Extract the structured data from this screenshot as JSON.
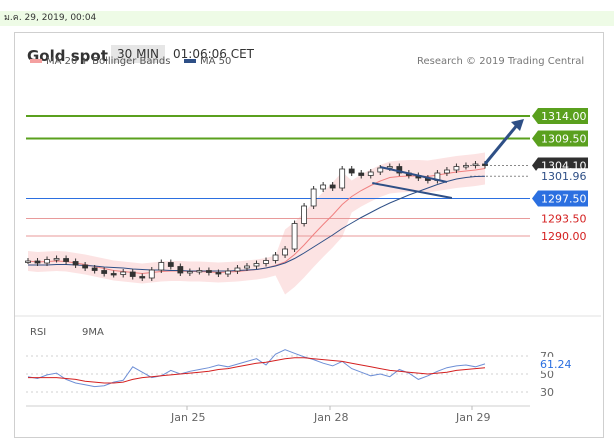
{
  "date_line": "ม.ค. 29, 2019, 00:04",
  "header": {
    "title": "Gold spot",
    "timeframe": "30 MIN",
    "time": "01:06:06 CET"
  },
  "legend": {
    "bb": {
      "label": "MA 20 + Bollinger Bands",
      "color": "#f08080"
    },
    "ma50": {
      "label": "MA 50",
      "color": "#2e4f86"
    }
  },
  "research": "Research © 2019 Trading Central",
  "rsi_legend": {
    "rsi": {
      "label": "RSI",
      "color": "#6e8fd6"
    },
    "ma9": {
      "label": "9MA",
      "color": "#d42020"
    }
  },
  "chart_data": [
    {
      "type": "line",
      "title": "Gold spot",
      "x_tick_labels": [
        "Jan 25",
        "Jan 28",
        "Jan 29"
      ],
      "horizontal_levels": [
        {
          "value": 1314.0,
          "label": "1314.00",
          "color": "#5aa01e",
          "kind": "resistance"
        },
        {
          "value": 1309.5,
          "label": "1309.50",
          "color": "#5aa01e",
          "kind": "resistance"
        },
        {
          "value": 1304.1,
          "label": "1304.10",
          "color": "#333333",
          "kind": "last"
        },
        {
          "value": 1301.96,
          "label": "1301.96",
          "color": "#2e4f86",
          "kind": "ma50"
        },
        {
          "value": 1297.5,
          "label": "1297.50",
          "color": "#2b6fe0",
          "kind": "pivot"
        },
        {
          "value": 1293.5,
          "label": "1293.50",
          "color": "#d42020",
          "kind": "support"
        },
        {
          "value": 1290.0,
          "label": "1290.00",
          "color": "#d42020",
          "kind": "support"
        }
      ],
      "series": [
        {
          "name": "Gold spot",
          "values": [
            1285.0,
            1284.6,
            1285.3,
            1285.5,
            1284.9,
            1284.2,
            1283.6,
            1283.1,
            1282.5,
            1282.3,
            1282.8,
            1281.9,
            1281.6,
            1283.2,
            1284.7,
            1283.9,
            1282.6,
            1282.9,
            1283.1,
            1282.7,
            1282.4,
            1283.0,
            1283.6,
            1284.0,
            1284.5,
            1285.1,
            1286.2,
            1287.4,
            1292.5,
            1296.0,
            1299.4,
            1300.2,
            1299.6,
            1303.4,
            1302.6,
            1302.1,
            1302.8,
            1303.6,
            1303.9,
            1302.6,
            1302.1,
            1301.6,
            1301.1,
            1302.6,
            1303.2,
            1303.9,
            1304.1,
            1304.4,
            1304.1
          ]
        },
        {
          "name": "MA 20",
          "values": [
            1285.0,
            1284.8,
            1284.9,
            1285.0,
            1284.9,
            1284.6,
            1284.3,
            1283.9,
            1283.5,
            1283.1,
            1282.9,
            1282.7,
            1282.5,
            1282.7,
            1282.9,
            1283.0,
            1283.0,
            1282.9,
            1282.9,
            1282.8,
            1282.7,
            1282.8,
            1282.9,
            1283.1,
            1283.3,
            1283.6,
            1284.1,
            1284.8,
            1286.3,
            1288.2,
            1290.3,
            1292.3,
            1294.2,
            1296.3,
            1297.9,
            1299.1,
            1300.1,
            1301.0,
            1301.7,
            1301.9,
            1302.0,
            1302.0,
            1301.9,
            1302.2,
            1302.5,
            1302.8,
            1303.0,
            1303.2,
            1303.5
          ]
        },
        {
          "name": "MA 50",
          "values": [
            1284.2,
            1284.2,
            1284.2,
            1284.3,
            1284.3,
            1284.2,
            1284.1,
            1284.0,
            1283.8,
            1283.7,
            1283.6,
            1283.4,
            1283.3,
            1283.2,
            1283.2,
            1283.1,
            1283.1,
            1283.0,
            1283.0,
            1283.0,
            1283.0,
            1283.0,
            1283.1,
            1283.2,
            1283.3,
            1283.6,
            1284.0,
            1284.6,
            1285.5,
            1286.6,
            1287.8,
            1289.0,
            1290.2,
            1291.5,
            1292.6,
            1293.7,
            1294.7,
            1295.7,
            1296.6,
            1297.4,
            1298.2,
            1298.9,
            1299.6,
            1300.3,
            1300.9,
            1301.4,
            1301.7,
            1301.9,
            1301.96
          ]
        }
      ],
      "channel": {
        "upper": [
          1303.8,
          1300.8
        ],
        "lower": [
          1300.6,
          1297.6
        ]
      }
    },
    {
      "type": "line",
      "title": "RSI",
      "y_tick_labels": [
        "70",
        "50",
        "30"
      ],
      "last_value": "61.24",
      "series": [
        {
          "name": "RSI",
          "values": [
            47,
            45,
            49,
            51,
            44,
            40,
            38,
            36,
            37,
            41,
            43,
            58,
            52,
            46,
            48,
            54,
            50,
            53,
            55,
            57,
            60,
            58,
            61,
            64,
            67,
            60,
            72,
            77,
            73,
            69,
            66,
            62,
            59,
            64,
            56,
            52,
            48,
            50,
            47,
            55,
            51,
            44,
            48,
            53,
            57,
            59,
            60,
            58,
            61.24
          ]
        },
        {
          "name": "9MA",
          "values": [
            46,
            46,
            46,
            46,
            45,
            44,
            42,
            41,
            40,
            40,
            41,
            44,
            46,
            47,
            48,
            49,
            50,
            51,
            52,
            53,
            55,
            56,
            58,
            60,
            62,
            63,
            65,
            67,
            68,
            68,
            67,
            66,
            65,
            64,
            62,
            60,
            58,
            56,
            54,
            53,
            52,
            51,
            50,
            51,
            52,
            54,
            55,
            56,
            57
          ]
        }
      ]
    }
  ]
}
